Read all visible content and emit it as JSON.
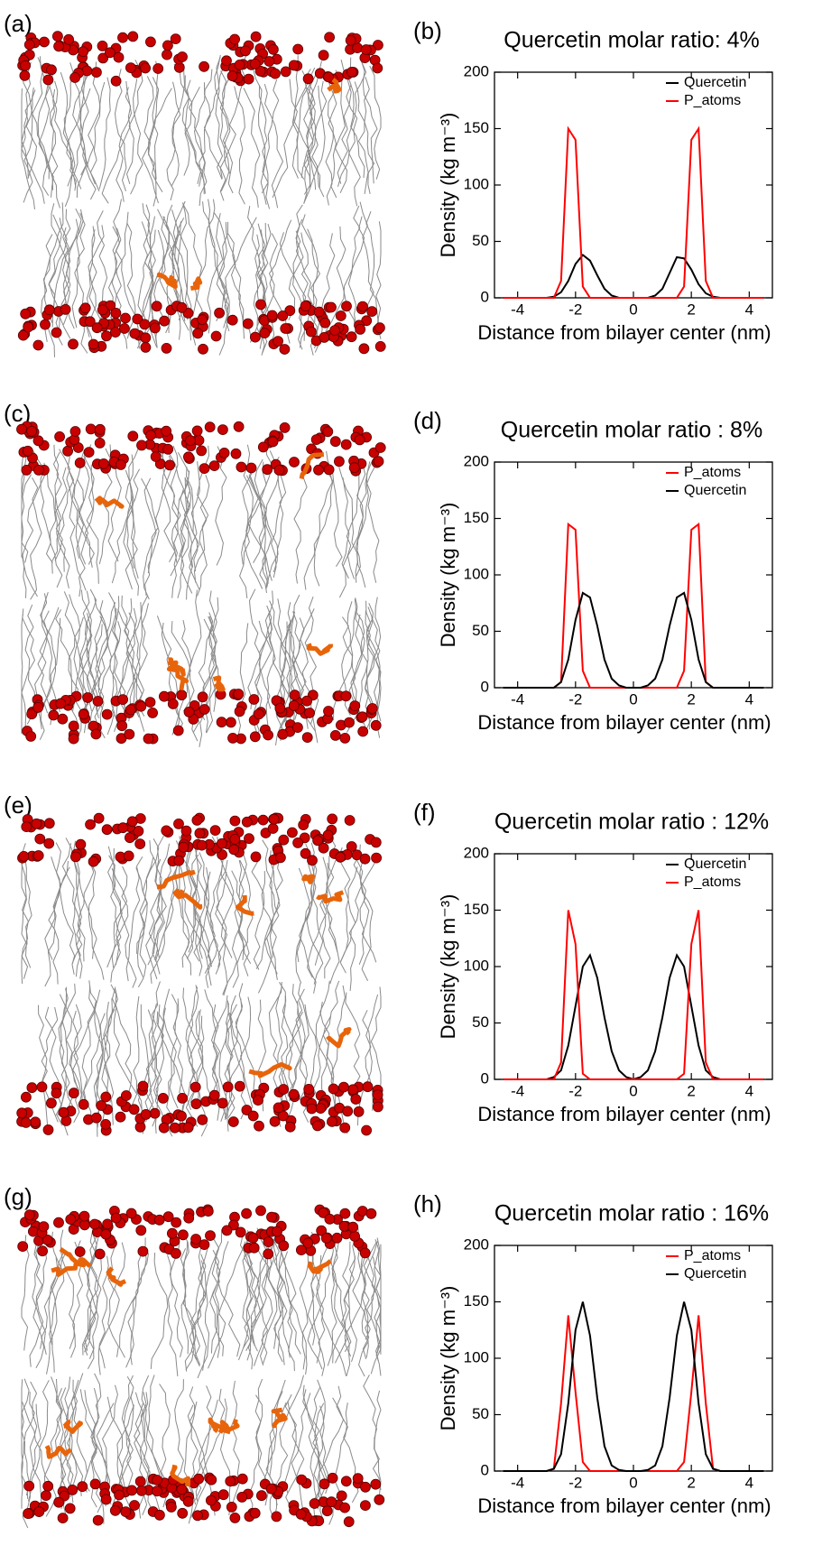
{
  "image_panel_labels": [
    "(a)",
    "(c)",
    "(e)",
    "(g)"
  ],
  "chart_data": [
    {
      "type": "line",
      "label": "(b)",
      "title": "Quercetin molar ratio: 4%",
      "xlabel": "Distance from bilayer center (nm)",
      "ylabel": "Density (kg m⁻³)",
      "xlim": [
        -4.8,
        4.8
      ],
      "xticks": [
        -4,
        -2,
        0,
        2,
        4
      ],
      "ylim": [
        0,
        200
      ],
      "yticks": [
        0,
        50,
        100,
        150,
        200
      ],
      "legend": "upper right",
      "x": [
        -4.5,
        -4.25,
        -4,
        -3.75,
        -3.5,
        -3.25,
        -3,
        -2.75,
        -2.5,
        -2.25,
        -2,
        -1.75,
        -1.5,
        -1.25,
        -1,
        -0.75,
        -0.5,
        -0.25,
        0,
        0.25,
        0.5,
        0.75,
        1,
        1.25,
        1.5,
        1.75,
        2,
        2.25,
        2.5,
        2.75,
        3,
        3.25,
        3.5,
        3.75,
        4,
        4.25,
        4.5
      ],
      "series": [
        {
          "name": "Quercetin",
          "color": "#000000",
          "values": [
            0,
            0,
            0,
            0,
            0,
            0,
            0,
            1,
            5,
            15,
            30,
            38,
            33,
            20,
            8,
            2,
            0,
            0,
            0,
            0,
            0,
            2,
            8,
            22,
            36,
            35,
            25,
            12,
            4,
            1,
            0,
            0,
            0,
            0,
            0,
            0,
            0
          ]
        },
        {
          "name": "P_atoms",
          "color": "#ff0000",
          "values": [
            0,
            0,
            0,
            0,
            0,
            0,
            0,
            0,
            15,
            150,
            140,
            10,
            0,
            0,
            0,
            0,
            0,
            0,
            0,
            0,
            0,
            0,
            0,
            0,
            0,
            10,
            140,
            150,
            15,
            0,
            0,
            0,
            0,
            0,
            0,
            0,
            0
          ]
        }
      ]
    },
    {
      "type": "line",
      "label": "(d)",
      "title": "Quercetin molar ratio : 8%",
      "xlabel": "Distance from bilayer center (nm)",
      "ylabel": "Density (kg m⁻³)",
      "xlim": [
        -4.8,
        4.8
      ],
      "xticks": [
        -4,
        -2,
        0,
        2,
        4
      ],
      "ylim": [
        0,
        200
      ],
      "yticks": [
        0,
        50,
        100,
        150,
        200
      ],
      "legend": "upper right",
      "x": [
        -4.5,
        -4.25,
        -4,
        -3.75,
        -3.5,
        -3.25,
        -3,
        -2.75,
        -2.5,
        -2.25,
        -2,
        -1.75,
        -1.5,
        -1.25,
        -1,
        -0.75,
        -0.5,
        -0.25,
        0,
        0.25,
        0.5,
        0.75,
        1,
        1.25,
        1.5,
        1.75,
        2,
        2.25,
        2.5,
        2.75,
        3,
        3.25,
        3.5,
        3.75,
        4,
        4.25,
        4.5
      ],
      "series": [
        {
          "name": "P_atoms",
          "color": "#ff0000",
          "values": [
            0,
            0,
            0,
            0,
            0,
            0,
            0,
            0,
            5,
            145,
            140,
            15,
            0,
            0,
            0,
            0,
            0,
            0,
            0,
            0,
            0,
            0,
            0,
            0,
            0,
            15,
            140,
            145,
            5,
            0,
            0,
            0,
            0,
            0,
            0,
            0,
            0
          ]
        },
        {
          "name": "Quercetin",
          "color": "#000000",
          "values": [
            0,
            0,
            0,
            0,
            0,
            0,
            0,
            0,
            5,
            25,
            60,
            84,
            80,
            55,
            25,
            8,
            2,
            0,
            0,
            0,
            2,
            8,
            25,
            55,
            80,
            84,
            60,
            25,
            5,
            0,
            0,
            0,
            0,
            0,
            0,
            0,
            0
          ]
        }
      ]
    },
    {
      "type": "line",
      "label": "(f)",
      "title": "Quercetin molar ratio : 12%",
      "xlabel": "Distance from bilayer center (nm)",
      "ylabel": "Density (kg m⁻³)",
      "xlim": [
        -4.8,
        4.8
      ],
      "xticks": [
        -4,
        -2,
        0,
        2,
        4
      ],
      "ylim": [
        0,
        200
      ],
      "yticks": [
        0,
        50,
        100,
        150,
        200
      ],
      "legend": "upper right",
      "x": [
        -4.5,
        -4.25,
        -4,
        -3.75,
        -3.5,
        -3.25,
        -3,
        -2.75,
        -2.5,
        -2.25,
        -2,
        -1.75,
        -1.5,
        -1.25,
        -1,
        -0.75,
        -0.5,
        -0.25,
        0,
        0.25,
        0.5,
        0.75,
        1,
        1.25,
        1.5,
        1.75,
        2,
        2.25,
        2.5,
        2.75,
        3,
        3.25,
        3.5,
        3.75,
        4,
        4.25,
        4.5
      ],
      "series": [
        {
          "name": "Quercetin",
          "color": "#000000",
          "values": [
            0,
            0,
            0,
            0,
            0,
            0,
            0,
            2,
            8,
            30,
            65,
            100,
            110,
            90,
            55,
            25,
            8,
            2,
            0,
            2,
            8,
            25,
            55,
            90,
            110,
            100,
            65,
            30,
            8,
            2,
            0,
            0,
            0,
            0,
            0,
            0,
            0
          ]
        },
        {
          "name": "P_atoms",
          "color": "#ff0000",
          "values": [
            0,
            0,
            0,
            0,
            0,
            0,
            0,
            0,
            15,
            150,
            120,
            5,
            0,
            0,
            0,
            0,
            0,
            0,
            0,
            0,
            0,
            0,
            0,
            0,
            0,
            5,
            120,
            150,
            15,
            0,
            0,
            0,
            0,
            0,
            0,
            0,
            0
          ]
        }
      ]
    },
    {
      "type": "line",
      "label": "(h)",
      "title": "Quercetin molar ratio : 16%",
      "xlabel": "Distance from bilayer center (nm)",
      "ylabel": "Density (kg m⁻³)",
      "xlim": [
        -4.8,
        4.8
      ],
      "xticks": [
        -4,
        -2,
        0,
        2,
        4
      ],
      "ylim": [
        0,
        200
      ],
      "yticks": [
        0,
        50,
        100,
        150,
        200
      ],
      "legend": "upper right",
      "x": [
        -4.5,
        -4.25,
        -4,
        -3.75,
        -3.5,
        -3.25,
        -3,
        -2.75,
        -2.5,
        -2.25,
        -2,
        -1.75,
        -1.5,
        -1.25,
        -1,
        -0.75,
        -0.5,
        -0.25,
        0,
        0.25,
        0.5,
        0.75,
        1,
        1.25,
        1.5,
        1.75,
        2,
        2.25,
        2.5,
        2.75,
        3,
        3.25,
        3.5,
        3.75,
        4,
        4.25,
        4.5
      ],
      "series": [
        {
          "name": "P_atoms",
          "color": "#ff0000",
          "values": [
            0,
            0,
            0,
            0,
            0,
            0,
            0,
            2,
            60,
            138,
            70,
            8,
            0,
            0,
            0,
            0,
            0,
            0,
            0,
            0,
            0,
            0,
            0,
            0,
            0,
            8,
            70,
            138,
            60,
            2,
            0,
            0,
            0,
            0,
            0,
            0,
            0
          ]
        },
        {
          "name": "Quercetin",
          "color": "#000000",
          "values": [
            0,
            0,
            0,
            0,
            0,
            0,
            0,
            2,
            15,
            60,
            125,
            150,
            120,
            65,
            22,
            5,
            1,
            0,
            0,
            0,
            1,
            5,
            22,
            65,
            120,
            150,
            125,
            60,
            15,
            2,
            0,
            0,
            0,
            0,
            0,
            0,
            0
          ]
        }
      ]
    }
  ]
}
